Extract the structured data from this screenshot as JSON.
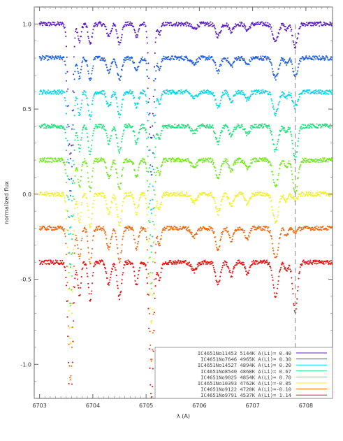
{
  "chart_data": {
    "type": "scatter",
    "title": "",
    "xlabel": "λ (A)",
    "ylabel": "normalized flux",
    "xlim": [
      6702.9,
      6708.5
    ],
    "ylim": [
      -1.2,
      1.1
    ],
    "x_ticks": [
      6703,
      6704,
      6705,
      6706,
      6707,
      6708
    ],
    "x_tick_labels": [
      "6703",
      "6704",
      "6705",
      "6706",
      "6707",
      "6708"
    ],
    "y_ticks": [
      -1.0,
      -0.5,
      0.0,
      0.5,
      1.0
    ],
    "y_tick_labels": [
      "-1.0",
      "-0.5",
      "0.0",
      "0.5",
      "1.0"
    ],
    "reference_line": {
      "x": 6707.8,
      "style": "dashed",
      "color": "#999999"
    },
    "legend_position": "bottom-right",
    "lines": [
      {
        "center": 6703.58,
        "depth": 0.92,
        "width": 0.04
      },
      {
        "center": 6703.75,
        "depth": 0.15,
        "width": 0.03
      },
      {
        "center": 6703.95,
        "depth": 0.17,
        "width": 0.035
      },
      {
        "center": 6704.3,
        "depth": 0.1,
        "width": 0.04
      },
      {
        "center": 6704.5,
        "depth": 0.16,
        "width": 0.04
      },
      {
        "center": 6704.82,
        "depth": 0.1,
        "width": 0.035
      },
      {
        "center": 6705.1,
        "depth": 0.8,
        "width": 0.04
      },
      {
        "center": 6705.25,
        "depth": 0.08,
        "width": 0.03
      },
      {
        "center": 6705.9,
        "depth": 0.04,
        "width": 0.05
      },
      {
        "center": 6706.35,
        "depth": 0.1,
        "width": 0.045
      },
      {
        "center": 6706.6,
        "depth": 0.06,
        "width": 0.04
      },
      {
        "center": 6706.9,
        "depth": 0.05,
        "width": 0.04
      },
      {
        "center": 6707.43,
        "depth": 0.15,
        "width": 0.05
      },
      {
        "center": 6707.63,
        "depth": 0.04,
        "width": 0.03
      }
    ],
    "series": [
      {
        "name": "IC4651No11453",
        "temperature": "5144K",
        "ali_label": "A(Li)= 0.40",
        "color": "#5a1fc4",
        "offset": 1.0,
        "li": 0.4,
        "legend": "IC4651No11453   5144K   A(Li)= 0.40"
      },
      {
        "name": "IC4651No7646",
        "temperature": "4965K",
        "ali_label": "A(Li)= 0.30",
        "color": "#1f5fe0",
        "offset": 0.8,
        "li": 0.3,
        "legend": "IC4651No7646    4965K   A(Li)= 0.30"
      },
      {
        "name": "IC4651No14527",
        "temperature": "4894K",
        "ali_label": "A(Li)= 0.20",
        "color": "#00d8e8",
        "offset": 0.6,
        "li": 0.2,
        "legend": "IC4651No14527   4894K   A(Li)= 0.20"
      },
      {
        "name": "IC4651No8540",
        "temperature": "4868K",
        "ali_label": "A(Li)= 0.67",
        "color": "#1fe27a",
        "offset": 0.4,
        "li": 0.67,
        "legend": "IC4651No8540    4868K   A(Li)= 0.67"
      },
      {
        "name": "IC4651No9025",
        "temperature": "4854K",
        "ali_label": "A(Li)= 0.70",
        "color": "#6fe81f",
        "offset": 0.2,
        "li": 0.7,
        "legend": "IC4651No9025    4854K   A(Li)= 0.70"
      },
      {
        "name": "IC4651No10393",
        "temperature": "4762K",
        "ali_label": "A(Li)=-0.05",
        "color": "#f0f02a",
        "offset": 0.0,
        "li": -0.05,
        "legend": "IC4651No10393   4762K   A(Li)=-0.05"
      },
      {
        "name": "IC4651No9122",
        "temperature": "4720K",
        "ali_label": "A(Li)=-0.10",
        "color": "#f06a10",
        "offset": -0.2,
        "li": -0.1,
        "legend": "IC4651No9122    4720K   A(Li)=-0.10"
      },
      {
        "name": "IC4651No9791",
        "temperature": "4537K",
        "ali_label": "A(Li)= 1.14",
        "color": "#e81010",
        "offset": -0.4,
        "li": 1.14,
        "legend": "IC4651No9791    4537K   A(Li)= 1.14"
      }
    ]
  }
}
